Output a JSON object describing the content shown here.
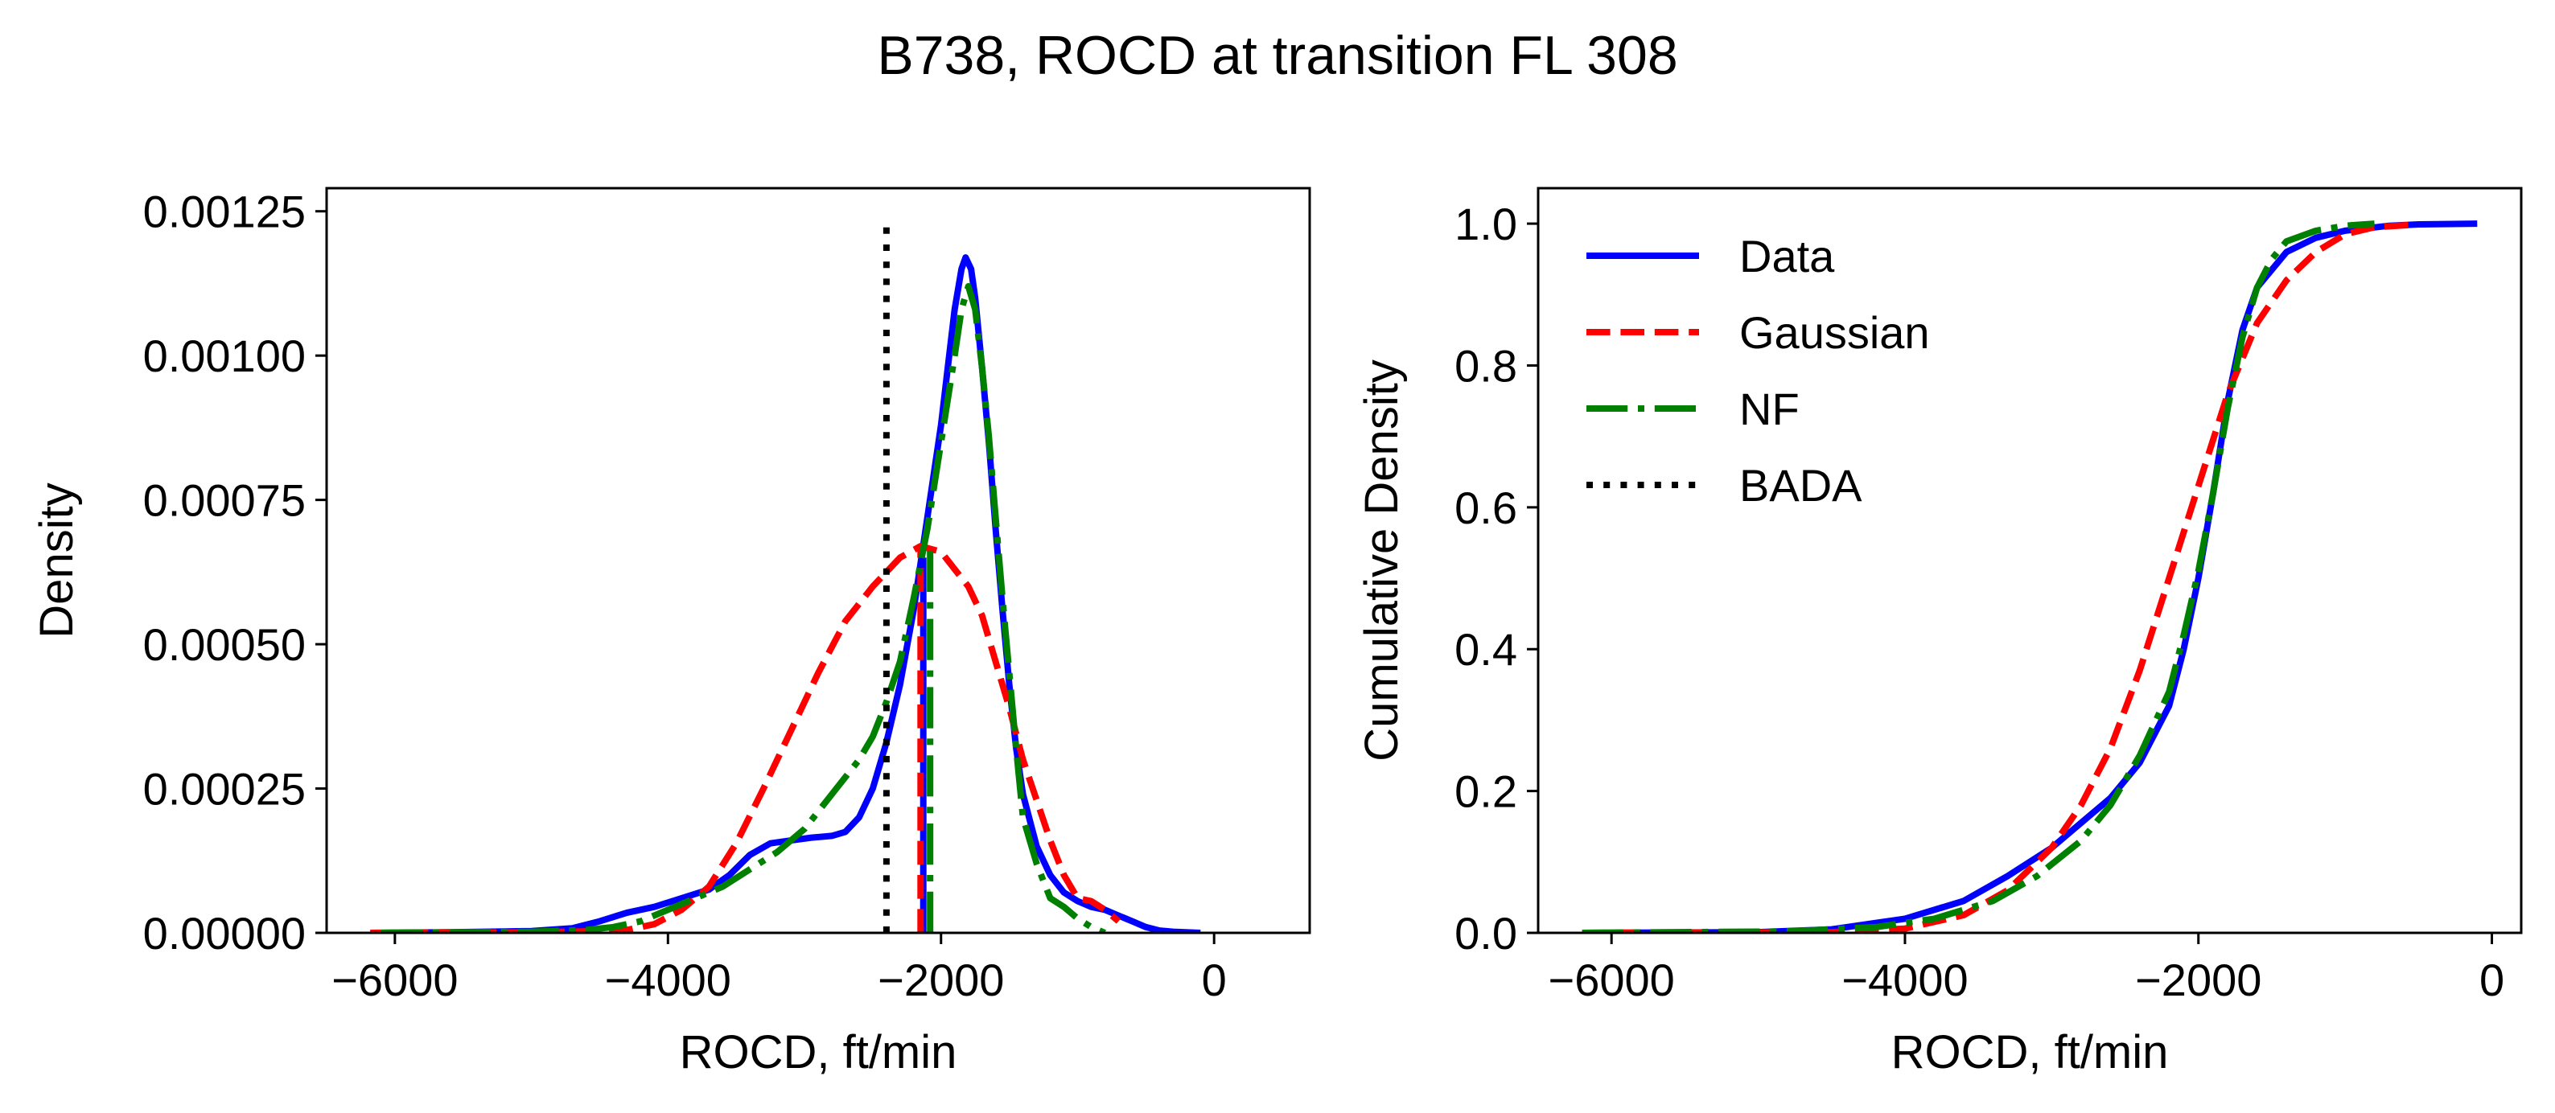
{
  "figure_title": "B738, ROCD at transition FL 308",
  "colors": {
    "data": "#0000ff",
    "gaussian": "#ff0000",
    "nf": "#008000",
    "bada": "#000000"
  },
  "chart_data": [
    {
      "type": "line",
      "id": "pdf",
      "title": "",
      "xlabel": "ROCD, ft/min",
      "ylabel": "Density",
      "xlim": [
        -6500,
        700
      ],
      "ylim": [
        0,
        0.00129
      ],
      "xticks": [
        -6000,
        -4000,
        -2000,
        0
      ],
      "xtick_labels": [
        "−6000",
        "−4000",
        "−2000",
        "0"
      ],
      "yticks": [
        0,
        0.00025,
        0.0005,
        0.00075,
        0.001,
        0.00125
      ],
      "ytick_labels": [
        "0.00000",
        "0.00025",
        "0.00050",
        "0.00075",
        "0.00100",
        "0.00125"
      ],
      "series": [
        {
          "name": "Data",
          "style": "solid",
          "color_key": "data",
          "points": [
            [
              -6180,
              0
            ],
            [
              -5600,
              1e-06
            ],
            [
              -5000,
              3e-06
            ],
            [
              -4700,
              8e-06
            ],
            [
              -4500,
              2e-05
            ],
            [
              -4300,
              3.5e-05
            ],
            [
              -4100,
              4.5e-05
            ],
            [
              -3900,
              6e-05
            ],
            [
              -3700,
              7.5e-05
            ],
            [
              -3550,
              0.0001
            ],
            [
              -3400,
              0.000135
            ],
            [
              -3250,
              0.000155
            ],
            [
              -3100,
              0.00016
            ],
            [
              -2950,
              0.000165
            ],
            [
              -2800,
              0.000168
            ],
            [
              -2700,
              0.000175
            ],
            [
              -2600,
              0.0002
            ],
            [
              -2500,
              0.00025
            ],
            [
              -2400,
              0.00033
            ],
            [
              -2300,
              0.00043
            ],
            [
              -2200,
              0.00056
            ],
            [
              -2100,
              0.00072
            ],
            [
              -2000,
              0.00088
            ],
            [
              -1950,
              0.00098
            ],
            [
              -1900,
              0.00108
            ],
            [
              -1850,
              0.00115
            ],
            [
              -1820,
              0.00117
            ],
            [
              -1780,
              0.00115
            ],
            [
              -1750,
              0.0011
            ],
            [
              -1700,
              0.00098
            ],
            [
              -1650,
              0.00085
            ],
            [
              -1600,
              0.0007
            ],
            [
              -1550,
              0.00056
            ],
            [
              -1500,
              0.00043
            ],
            [
              -1450,
              0.00032
            ],
            [
              -1400,
              0.00024
            ],
            [
              -1300,
              0.00015
            ],
            [
              -1200,
              0.0001
            ],
            [
              -1100,
              7e-05
            ],
            [
              -1000,
              5.5e-05
            ],
            [
              -900,
              4.5e-05
            ],
            [
              -800,
              4e-05
            ],
            [
              -700,
              3e-05
            ],
            [
              -600,
              2e-05
            ],
            [
              -500,
              1e-05
            ],
            [
              -400,
              4e-06
            ],
            [
              -300,
              2e-06
            ],
            [
              -100,
              0
            ]
          ]
        },
        {
          "name": "Data (lower cutoff)",
          "style": "solid",
          "color_key": "data",
          "points": [
            [
              -2130,
              0
            ],
            [
              -2130,
              0.00065
            ]
          ]
        },
        {
          "name": "Gaussian",
          "style": "dashed",
          "color_key": "gaussian",
          "points": [
            [
              -6180,
              0
            ],
            [
              -5000,
              1e-06
            ],
            [
              -4500,
              3e-06
            ],
            [
              -4300,
              5e-06
            ],
            [
              -4100,
              1.5e-05
            ],
            [
              -3900,
              4e-05
            ],
            [
              -3700,
              8e-05
            ],
            [
              -3500,
              0.000155
            ],
            [
              -3300,
              0.00025
            ],
            [
              -3100,
              0.00035
            ],
            [
              -2900,
              0.00045
            ],
            [
              -2700,
              0.00054
            ],
            [
              -2500,
              0.0006
            ],
            [
              -2300,
              0.00065
            ],
            [
              -2150,
              0.00067
            ],
            [
              -2000,
              0.00066
            ],
            [
              -1900,
              0.00063
            ],
            [
              -1800,
              0.0006
            ],
            [
              -1700,
              0.00055
            ],
            [
              -1600,
              0.00047
            ],
            [
              -1500,
              0.00039
            ],
            [
              -1400,
              0.0003
            ],
            [
              -1300,
              0.00023
            ],
            [
              -1200,
              0.00016
            ],
            [
              -1100,
              0.0001
            ],
            [
              -1000,
              6e-05
            ],
            [
              -900,
              5.5e-05
            ],
            [
              -800,
              4e-05
            ],
            [
              -700,
              2e-05
            ]
          ]
        },
        {
          "name": "Gaussian (lower cutoff)",
          "style": "dashed",
          "color_key": "gaussian",
          "points": [
            [
              -2150,
              0
            ],
            [
              -2150,
              0.00067
            ]
          ]
        },
        {
          "name": "NF",
          "style": "dashdot",
          "color_key": "nf",
          "points": [
            [
              -6100,
              0
            ],
            [
              -5500,
              1e-06
            ],
            [
              -5000,
              2e-06
            ],
            [
              -4600,
              5e-06
            ],
            [
              -4400,
              1e-05
            ],
            [
              -4200,
              2e-05
            ],
            [
              -4000,
              4e-05
            ],
            [
              -3800,
              6e-05
            ],
            [
              -3600,
              8e-05
            ],
            [
              -3400,
              0.00011
            ],
            [
              -3200,
              0.00014
            ],
            [
              -3000,
              0.00018
            ],
            [
              -2800,
              0.00024
            ],
            [
              -2600,
              0.0003
            ],
            [
              -2500,
              0.00034
            ],
            [
              -2400,
              0.0004
            ],
            [
              -2300,
              0.00047
            ],
            [
              -2200,
              0.00058
            ],
            [
              -2100,
              0.0007
            ],
            [
              -2000,
              0.00085
            ],
            [
              -1900,
              0.001
            ],
            [
              -1850,
              0.00108
            ],
            [
              -1800,
              0.00112
            ],
            [
              -1750,
              0.00108
            ],
            [
              -1700,
              0.00098
            ],
            [
              -1650,
              0.00086
            ],
            [
              -1600,
              0.00072
            ],
            [
              -1550,
              0.00058
            ],
            [
              -1500,
              0.00045
            ],
            [
              -1450,
              0.00032
            ],
            [
              -1400,
              0.0002
            ],
            [
              -1300,
              0.00012
            ],
            [
              -1200,
              6e-05
            ],
            [
              -1100,
              4.5e-05
            ],
            [
              -1000,
              2.5e-05
            ],
            [
              -900,
              1e-05
            ],
            [
              -800,
              0
            ]
          ]
        },
        {
          "name": "NF (lower cutoff)",
          "style": "dashdot",
          "color_key": "nf",
          "points": [
            [
              -2080,
              0
            ],
            [
              -2080,
              0.00067
            ]
          ]
        },
        {
          "name": "BADA",
          "style": "dotted",
          "color_key": "bada",
          "points": [
            [
              -2400,
              0
            ],
            [
              -2400,
              0.00123
            ]
          ]
        }
      ]
    },
    {
      "type": "line",
      "id": "cdf",
      "title": "",
      "xlabel": "ROCD, ft/min",
      "ylabel": "Cumulative Density",
      "xlim": [
        -6500,
        200
      ],
      "ylim": [
        0,
        1.05
      ],
      "xticks": [
        -6000,
        -4000,
        -2000,
        0
      ],
      "xtick_labels": [
        "−6000",
        "−4000",
        "−2000",
        "0"
      ],
      "yticks": [
        0,
        0.2,
        0.4,
        0.6,
        0.8,
        1.0
      ],
      "ytick_labels": [
        "0.0",
        "0.2",
        "0.4",
        "0.6",
        "0.8",
        "1.0"
      ],
      "legend": {
        "location": "upper-left",
        "entries": [
          "Data",
          "Gaussian",
          "NF",
          "BADA"
        ]
      },
      "series": [
        {
          "name": "Data",
          "style": "solid",
          "color_key": "data",
          "points": [
            [
              -6200,
              0
            ],
            [
              -5000,
              0.001
            ],
            [
              -4500,
              0.005
            ],
            [
              -4000,
              0.02
            ],
            [
              -3600,
              0.045
            ],
            [
              -3300,
              0.08
            ],
            [
              -3000,
              0.12
            ],
            [
              -2800,
              0.155
            ],
            [
              -2600,
              0.19
            ],
            [
              -2400,
              0.24
            ],
            [
              -2200,
              0.32
            ],
            [
              -2100,
              0.4
            ],
            [
              -2000,
              0.5
            ],
            [
              -1900,
              0.62
            ],
            [
              -1800,
              0.75
            ],
            [
              -1700,
              0.85
            ],
            [
              -1600,
              0.91
            ],
            [
              -1400,
              0.96
            ],
            [
              -1200,
              0.98
            ],
            [
              -1000,
              0.99
            ],
            [
              -700,
              0.997
            ],
            [
              -500,
              0.999
            ],
            [
              -100,
              1.0
            ]
          ]
        },
        {
          "name": "Gaussian",
          "style": "dashed",
          "color_key": "gaussian",
          "points": [
            [
              -6200,
              0
            ],
            [
              -4500,
              0.001
            ],
            [
              -4000,
              0.006
            ],
            [
              -3600,
              0.025
            ],
            [
              -3300,
              0.06
            ],
            [
              -3000,
              0.12
            ],
            [
              -2800,
              0.18
            ],
            [
              -2600,
              0.26
            ],
            [
              -2400,
              0.37
            ],
            [
              -2200,
              0.5
            ],
            [
              -2000,
              0.63
            ],
            [
              -1800,
              0.76
            ],
            [
              -1600,
              0.86
            ],
            [
              -1400,
              0.92
            ],
            [
              -1200,
              0.96
            ],
            [
              -1000,
              0.985
            ],
            [
              -800,
              0.995
            ],
            [
              -500,
              0.999
            ]
          ]
        },
        {
          "name": "NF",
          "style": "dashdot",
          "color_key": "nf",
          "points": [
            [
              -6200,
              0
            ],
            [
              -4800,
              0.002
            ],
            [
              -4200,
              0.008
            ],
            [
              -3800,
              0.02
            ],
            [
              -3400,
              0.045
            ],
            [
              -3100,
              0.08
            ],
            [
              -2800,
              0.13
            ],
            [
              -2600,
              0.18
            ],
            [
              -2400,
              0.25
            ],
            [
              -2200,
              0.34
            ],
            [
              -2100,
              0.42
            ],
            [
              -2000,
              0.51
            ],
            [
              -1900,
              0.62
            ],
            [
              -1800,
              0.74
            ],
            [
              -1700,
              0.84
            ],
            [
              -1600,
              0.91
            ],
            [
              -1500,
              0.95
            ],
            [
              -1400,
              0.975
            ],
            [
              -1200,
              0.99
            ],
            [
              -1000,
              0.997
            ],
            [
              -800,
              1.0
            ]
          ]
        }
      ]
    }
  ]
}
